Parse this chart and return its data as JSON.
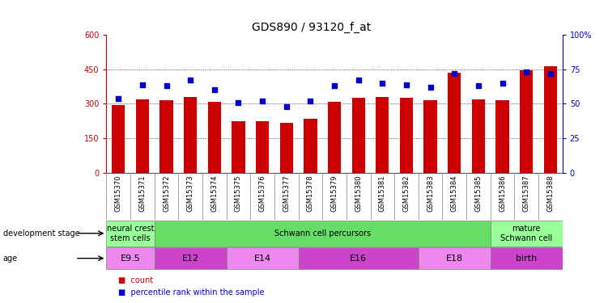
{
  "title": "GDS890 / 93120_f_at",
  "samples": [
    "GSM15370",
    "GSM15371",
    "GSM15372",
    "GSM15373",
    "GSM15374",
    "GSM15375",
    "GSM15376",
    "GSM15377",
    "GSM15378",
    "GSM15379",
    "GSM15380",
    "GSM15381",
    "GSM15382",
    "GSM15383",
    "GSM15384",
    "GSM15385",
    "GSM15386",
    "GSM15387",
    "GSM15388"
  ],
  "counts": [
    295,
    320,
    315,
    330,
    310,
    225,
    225,
    218,
    235,
    310,
    325,
    330,
    325,
    315,
    435,
    320,
    315,
    445,
    465
  ],
  "percentiles": [
    54,
    64,
    63,
    67,
    60,
    51,
    52,
    48,
    52,
    63,
    67,
    65,
    64,
    62,
    72,
    63,
    65,
    73,
    72
  ],
  "left_ylim": [
    0,
    600
  ],
  "right_ylim": [
    0,
    100
  ],
  "left_yticks": [
    0,
    150,
    300,
    450,
    600
  ],
  "right_yticks": [
    0,
    25,
    50,
    75,
    100
  ],
  "left_yticklabels": [
    "0",
    "150",
    "300",
    "450",
    "600"
  ],
  "right_yticklabels": [
    "0",
    "25",
    "50",
    "75",
    "100%"
  ],
  "bar_color": "#cc0000",
  "dot_color": "#0000cc",
  "grid_color": "#000000",
  "dev_stage_groups": [
    {
      "label": "neural crest\nstem cells",
      "start": 0,
      "end": 2,
      "color": "#99ff99"
    },
    {
      "label": "Schwann cell percursors",
      "start": 2,
      "end": 16,
      "color": "#66dd66"
    },
    {
      "label": "mature\nSchwann cell",
      "start": 16,
      "end": 19,
      "color": "#99ff99"
    }
  ],
  "age_groups": [
    {
      "label": "E9.5",
      "start": 0,
      "end": 2,
      "color": "#ee88ee"
    },
    {
      "label": "E12",
      "start": 2,
      "end": 5,
      "color": "#cc44cc"
    },
    {
      "label": "E14",
      "start": 5,
      "end": 8,
      "color": "#ee88ee"
    },
    {
      "label": "E16",
      "start": 8,
      "end": 13,
      "color": "#cc44cc"
    },
    {
      "label": "E18",
      "start": 13,
      "end": 16,
      "color": "#ee88ee"
    },
    {
      "label": "birth",
      "start": 16,
      "end": 19,
      "color": "#cc44cc"
    }
  ],
  "xtick_bg": "#dddddd",
  "legend_count_color": "#cc0000",
  "legend_dot_color": "#0000cc",
  "bg_color": "#ffffff",
  "title_fontsize": 10,
  "tick_fontsize": 7,
  "xtick_fontsize": 6,
  "annot_fontsize": 7,
  "age_fontsize": 8
}
